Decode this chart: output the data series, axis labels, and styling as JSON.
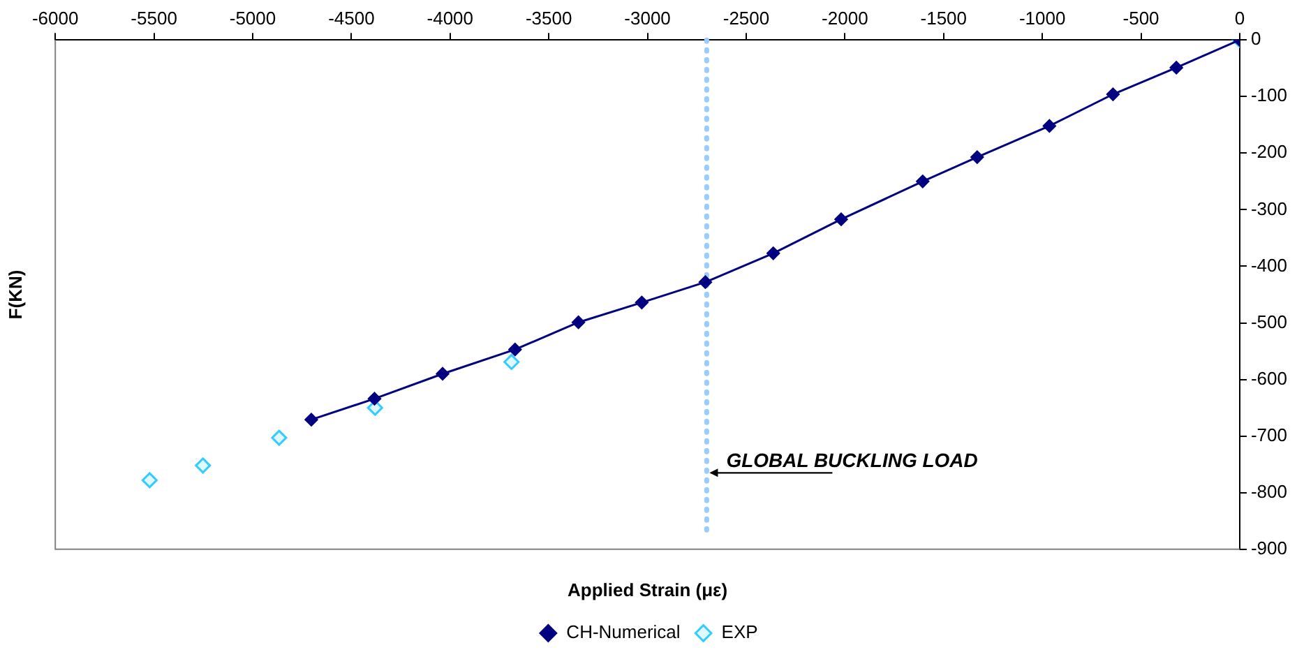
{
  "chart_data": {
    "type": "line",
    "xlabel": "Applied Strain (με)",
    "ylabel": "F(KN)",
    "xlim": [
      -6000,
      0
    ],
    "xticks": [
      -6000,
      -5500,
      -5000,
      -4500,
      -4000,
      -3500,
      -3000,
      -2500,
      -2000,
      -1500,
      -1000,
      -500,
      0
    ],
    "ylim": [
      -900,
      0
    ],
    "yticks": [
      -900,
      -800,
      -700,
      -600,
      -500,
      -400,
      -300,
      -200,
      -100,
      0
    ],
    "grid": false,
    "legend": "bottom",
    "marker": "diamond",
    "line_style": "solid",
    "series": [
      {
        "name": "CH-Numerical",
        "type": "line",
        "color": "#000080",
        "x": [
          -4703,
          -4383,
          -4038,
          -3671,
          -3350,
          -3029,
          -2707,
          -2363,
          -2019,
          -1606,
          -1330,
          -964,
          -642,
          -321,
          0
        ],
        "values": [
          -671,
          -634,
          -590,
          -547,
          -499,
          -464,
          -428,
          -377,
          -317,
          -250,
          -207,
          -152,
          -96,
          -49,
          0
        ]
      },
      {
        "name": "EXP",
        "type": "scatter",
        "color": "#33ccff",
        "x": [
          -5522,
          -5252,
          -4866,
          -4380,
          -3689,
          0
        ],
        "values": [
          -778,
          -752,
          -703,
          -650,
          -569,
          0
        ]
      }
    ],
    "ref_lines": [
      {
        "axis": "x",
        "value": -2700,
        "color": "#99ccff",
        "line_style": "dotted"
      }
    ],
    "annotations": [
      {
        "text": "GLOBAL BUCKLING LOAD",
        "x": -2700,
        "y": -765
      }
    ]
  }
}
